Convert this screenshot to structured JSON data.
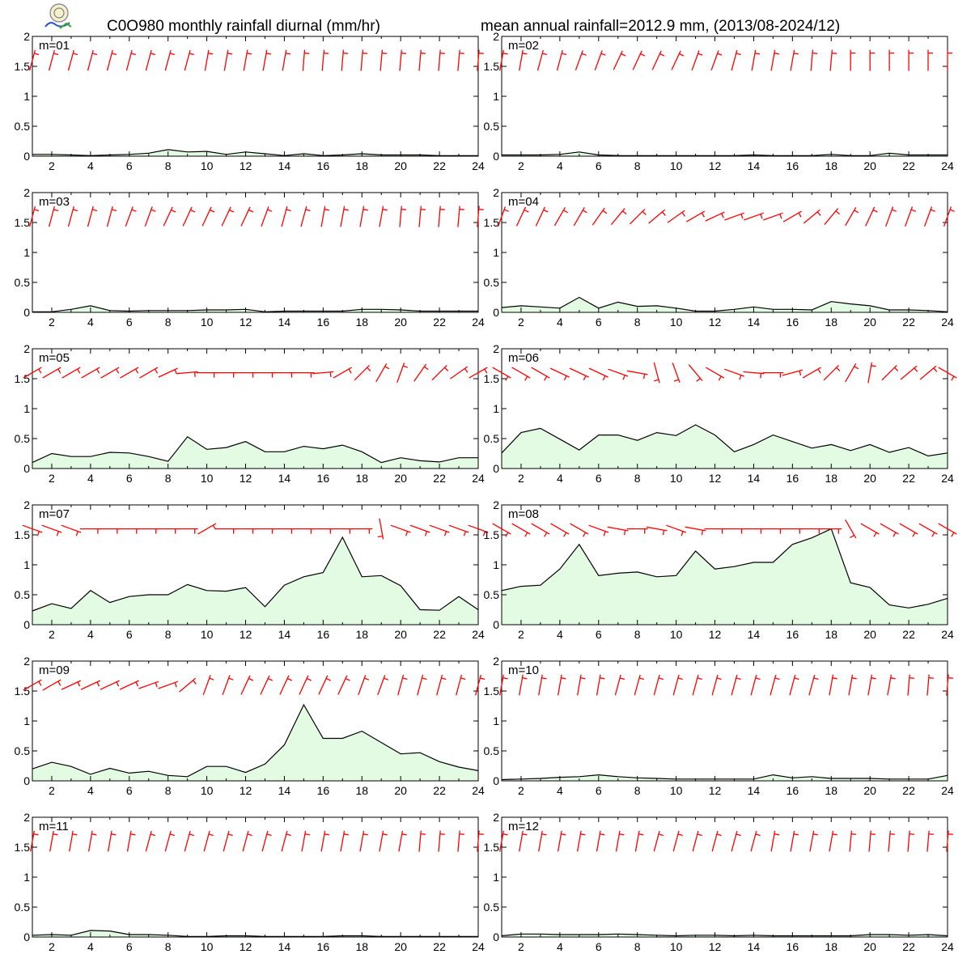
{
  "title_left": "C0O980 monthly rainfall diurnal (mm/hr)",
  "title_right": "mean annual rainfall=2012.9 mm, (2013/08-2024/12)",
  "colors": {
    "area_fill": "#e3fbe3",
    "line": "#000000",
    "wind": "#ff0000",
    "frame": "#000000"
  },
  "icons": {
    "logo": "lab-seal-logo-icon"
  },
  "chart_data": {
    "type": "area",
    "xlabel": "",
    "ylabel": "",
    "xlim": [
      1,
      24
    ],
    "ylim": [
      0,
      2
    ],
    "x_ticks": [
      2,
      4,
      6,
      8,
      10,
      12,
      14,
      16,
      18,
      20,
      22,
      24
    ],
    "y_ticks": [
      "0",
      "0.5",
      "1",
      "1.5",
      "2"
    ],
    "x": [
      1,
      2,
      3,
      4,
      5,
      6,
      7,
      8,
      9,
      10,
      11,
      12,
      13,
      14,
      15,
      16,
      17,
      18,
      19,
      20,
      21,
      22,
      23,
      24
    ],
    "panels": [
      {
        "label": "m=01",
        "values": [
          0.03,
          0.03,
          0.02,
          0.01,
          0.02,
          0.03,
          0.05,
          0.11,
          0.07,
          0.08,
          0.03,
          0.07,
          0.04,
          0.01,
          0.04,
          0.01,
          0.02,
          0.04,
          0.02,
          0.02,
          0.02,
          0.01,
          0.01,
          0.01
        ]
      },
      {
        "label": "m=02",
        "values": [
          0.02,
          0.02,
          0.02,
          0.03,
          0.07,
          0.02,
          0.01,
          0.01,
          0.01,
          0.01,
          0.01,
          0.01,
          0.01,
          0.02,
          0.01,
          0.01,
          0.01,
          0.03,
          0.01,
          0.01,
          0.05,
          0.02,
          0.02,
          0.02
        ]
      },
      {
        "label": "m=03",
        "values": [
          0.01,
          0.01,
          0.05,
          0.11,
          0.03,
          0.02,
          0.03,
          0.03,
          0.03,
          0.04,
          0.04,
          0.05,
          0.01,
          0.02,
          0.02,
          0.02,
          0.02,
          0.05,
          0.05,
          0.04,
          0.02,
          0.02,
          0.02,
          0.02
        ]
      },
      {
        "label": "m=04",
        "values": [
          0.08,
          0.11,
          0.09,
          0.07,
          0.25,
          0.07,
          0.17,
          0.1,
          0.11,
          0.07,
          0.02,
          0.02,
          0.05,
          0.09,
          0.05,
          0.05,
          0.04,
          0.18,
          0.14,
          0.11,
          0.04,
          0.04,
          0.03,
          0.01
        ]
      },
      {
        "label": "m=05",
        "values": [
          0.1,
          0.25,
          0.2,
          0.2,
          0.27,
          0.26,
          0.2,
          0.12,
          0.53,
          0.32,
          0.35,
          0.45,
          0.28,
          0.28,
          0.37,
          0.33,
          0.39,
          0.28,
          0.1,
          0.18,
          0.13,
          0.11,
          0.18,
          0.18
        ]
      },
      {
        "label": "m=06",
        "values": [
          0.26,
          0.6,
          0.67,
          0.49,
          0.31,
          0.56,
          0.56,
          0.47,
          0.6,
          0.55,
          0.73,
          0.56,
          0.28,
          0.4,
          0.56,
          0.45,
          0.34,
          0.4,
          0.3,
          0.4,
          0.27,
          0.35,
          0.21,
          0.26
        ]
      },
      {
        "label": "m=07",
        "values": [
          0.23,
          0.35,
          0.27,
          0.57,
          0.37,
          0.47,
          0.5,
          0.5,
          0.67,
          0.57,
          0.56,
          0.62,
          0.3,
          0.66,
          0.8,
          0.87,
          1.46,
          0.8,
          0.82,
          0.65,
          0.25,
          0.24,
          0.47,
          0.25
        ]
      },
      {
        "label": "m=08",
        "values": [
          0.57,
          0.64,
          0.66,
          0.93,
          1.34,
          0.82,
          0.86,
          0.88,
          0.8,
          0.82,
          1.23,
          0.93,
          0.97,
          1.04,
          1.04,
          1.34,
          1.45,
          1.6,
          0.7,
          0.62,
          0.33,
          0.28,
          0.34,
          0.44
        ]
      },
      {
        "label": "m=09",
        "values": [
          0.2,
          0.31,
          0.24,
          0.11,
          0.21,
          0.13,
          0.16,
          0.09,
          0.07,
          0.24,
          0.24,
          0.14,
          0.28,
          0.6,
          1.27,
          0.71,
          0.71,
          0.83,
          0.64,
          0.45,
          0.47,
          0.32,
          0.23,
          0.17
        ]
      },
      {
        "label": "m=10",
        "values": [
          0.02,
          0.03,
          0.04,
          0.06,
          0.07,
          0.1,
          0.07,
          0.05,
          0.04,
          0.03,
          0.03,
          0.03,
          0.03,
          0.03,
          0.1,
          0.05,
          0.07,
          0.04,
          0.04,
          0.04,
          0.03,
          0.03,
          0.03,
          0.09
        ]
      },
      {
        "label": "m=11",
        "values": [
          0.03,
          0.04,
          0.03,
          0.11,
          0.1,
          0.04,
          0.04,
          0.03,
          0.01,
          0.01,
          0.02,
          0.02,
          0.01,
          0.01,
          0.01,
          0.01,
          0.02,
          0.02,
          0.01,
          0.01,
          0.01,
          0.01,
          0.01,
          0.01
        ]
      },
      {
        "label": "m=12",
        "values": [
          0.02,
          0.05,
          0.05,
          0.04,
          0.04,
          0.04,
          0.05,
          0.04,
          0.03,
          0.02,
          0.03,
          0.03,
          0.02,
          0.03,
          0.02,
          0.02,
          0.02,
          0.02,
          0.02,
          0.04,
          0.04,
          0.03,
          0.04,
          0.02
        ]
      }
    ],
    "wind_barbs": [
      {
        "label": "m=01",
        "direction_deg": [
          15,
          15,
          15,
          15,
          15,
          15,
          15,
          15,
          15,
          10,
          10,
          10,
          10,
          10,
          5,
          5,
          5,
          5,
          5,
          5,
          5,
          5,
          5,
          5
        ]
      },
      {
        "label": "m=02",
        "direction_deg": [
          10,
          10,
          15,
          15,
          20,
          20,
          25,
          25,
          25,
          25,
          20,
          20,
          15,
          10,
          10,
          10,
          5,
          5,
          0,
          0,
          0,
          0,
          0,
          0
        ]
      },
      {
        "label": "m=03",
        "direction_deg": [
          15,
          15,
          15,
          15,
          15,
          20,
          20,
          25,
          25,
          25,
          25,
          25,
          20,
          15,
          15,
          10,
          10,
          10,
          10,
          5,
          5,
          5,
          5,
          5
        ]
      },
      {
        "label": "m=04",
        "direction_deg": [
          20,
          25,
          25,
          30,
          30,
          35,
          40,
          45,
          50,
          55,
          60,
          65,
          70,
          70,
          70,
          60,
          50,
          40,
          30,
          25,
          20,
          20,
          20,
          20
        ]
      },
      {
        "label": "m=05",
        "direction_deg": [
          60,
          60,
          60,
          60,
          60,
          60,
          60,
          65,
          85,
          90,
          90,
          90,
          90,
          90,
          90,
          85,
          60,
          45,
          30,
          20,
          35,
          45,
          55,
          60
        ]
      },
      {
        "label": "m=06",
        "direction_deg": [
          120,
          120,
          120,
          115,
          115,
          115,
          110,
          100,
          165,
          160,
          140,
          120,
          110,
          95,
          90,
          75,
          60,
          45,
          30,
          10,
          45,
          50,
          50,
          120
        ]
      },
      {
        "label": "m=07",
        "direction_deg": [
          110,
          110,
          110,
          90,
          90,
          90,
          90,
          90,
          90,
          60,
          90,
          90,
          90,
          90,
          90,
          90,
          90,
          90,
          170,
          110,
          110,
          110,
          110,
          110
        ]
      },
      {
        "label": "m=08",
        "direction_deg": [
          120,
          120,
          120,
          120,
          120,
          110,
          100,
          90,
          100,
          110,
          100,
          90,
          90,
          90,
          90,
          90,
          90,
          90,
          150,
          120,
          120,
          120,
          120,
          120
        ]
      },
      {
        "label": "m=09",
        "direction_deg": [
          60,
          60,
          65,
          65,
          65,
          65,
          70,
          70,
          50,
          20,
          20,
          25,
          25,
          25,
          25,
          25,
          25,
          20,
          20,
          15,
          15,
          15,
          15,
          15
        ]
      },
      {
        "label": "m=10",
        "direction_deg": [
          10,
          10,
          10,
          10,
          10,
          10,
          15,
          15,
          15,
          15,
          15,
          15,
          15,
          15,
          15,
          15,
          15,
          10,
          10,
          10,
          10,
          5,
          5,
          5
        ]
      },
      {
        "label": "m=11",
        "direction_deg": [
          10,
          10,
          10,
          10,
          10,
          10,
          15,
          15,
          15,
          15,
          15,
          15,
          15,
          15,
          10,
          10,
          10,
          10,
          10,
          10,
          5,
          5,
          5,
          5
        ]
      },
      {
        "label": "m=12",
        "direction_deg": [
          10,
          10,
          10,
          10,
          10,
          10,
          10,
          10,
          15,
          15,
          15,
          15,
          15,
          15,
          10,
          10,
          10,
          10,
          5,
          5,
          5,
          5,
          5,
          5
        ]
      }
    ]
  }
}
